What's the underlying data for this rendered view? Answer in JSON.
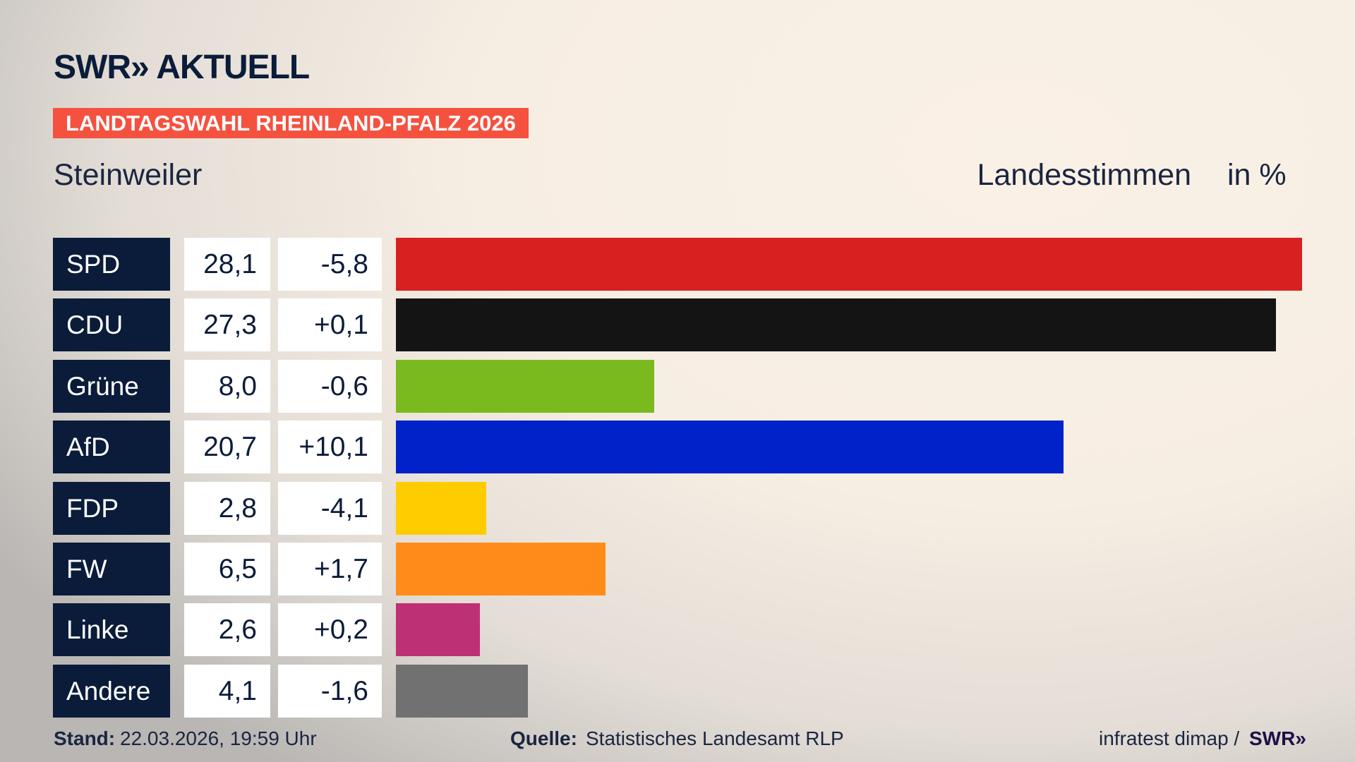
{
  "header": {
    "logo": "SWR» AKTUELL",
    "banner": "LANDTAGSWAHL RHEINLAND-PFALZ 2026",
    "place": "Steinweiler",
    "measure": "Landesstimmen",
    "unit": "in %"
  },
  "chart_data": {
    "type": "bar",
    "orientation": "horizontal",
    "title": "Steinweiler",
    "subtitle": "Landesstimmen",
    "unit": "in %",
    "categories": [
      "SPD",
      "CDU",
      "Grüne",
      "AfD",
      "FDP",
      "FW",
      "Linke",
      "Andere"
    ],
    "values": [
      28.1,
      27.3,
      8.0,
      20.7,
      2.8,
      6.5,
      2.6,
      4.1
    ],
    "value_labels": [
      "28,1",
      "27,3",
      "8,0",
      "20,7",
      "2,8",
      "6,5",
      "2,6",
      "4,1"
    ],
    "diff_labels": [
      "-5,8",
      "+0,1",
      "-0,6",
      "+10,1",
      "-4,1",
      "+1,7",
      "+0,2",
      "-1,6"
    ],
    "diffs": [
      -5.8,
      0.1,
      -0.6,
      10.1,
      -4.1,
      1.7,
      0.2,
      -1.6
    ],
    "colors": [
      "#d82020",
      "#141414",
      "#7aba1e",
      "#0022c8",
      "#ffcc00",
      "#ff8c18",
      "#be3075",
      "#717171"
    ],
    "xlim": [
      0,
      28.1
    ]
  },
  "footer": {
    "stand_label": "Stand:",
    "stand": "22.03.2026, 19:59 Uhr",
    "source_label": "Quelle:",
    "source": "Statistisches Landesamt RLP",
    "credit": "infratest dimap / ",
    "credit_logo": "SWR»"
  }
}
